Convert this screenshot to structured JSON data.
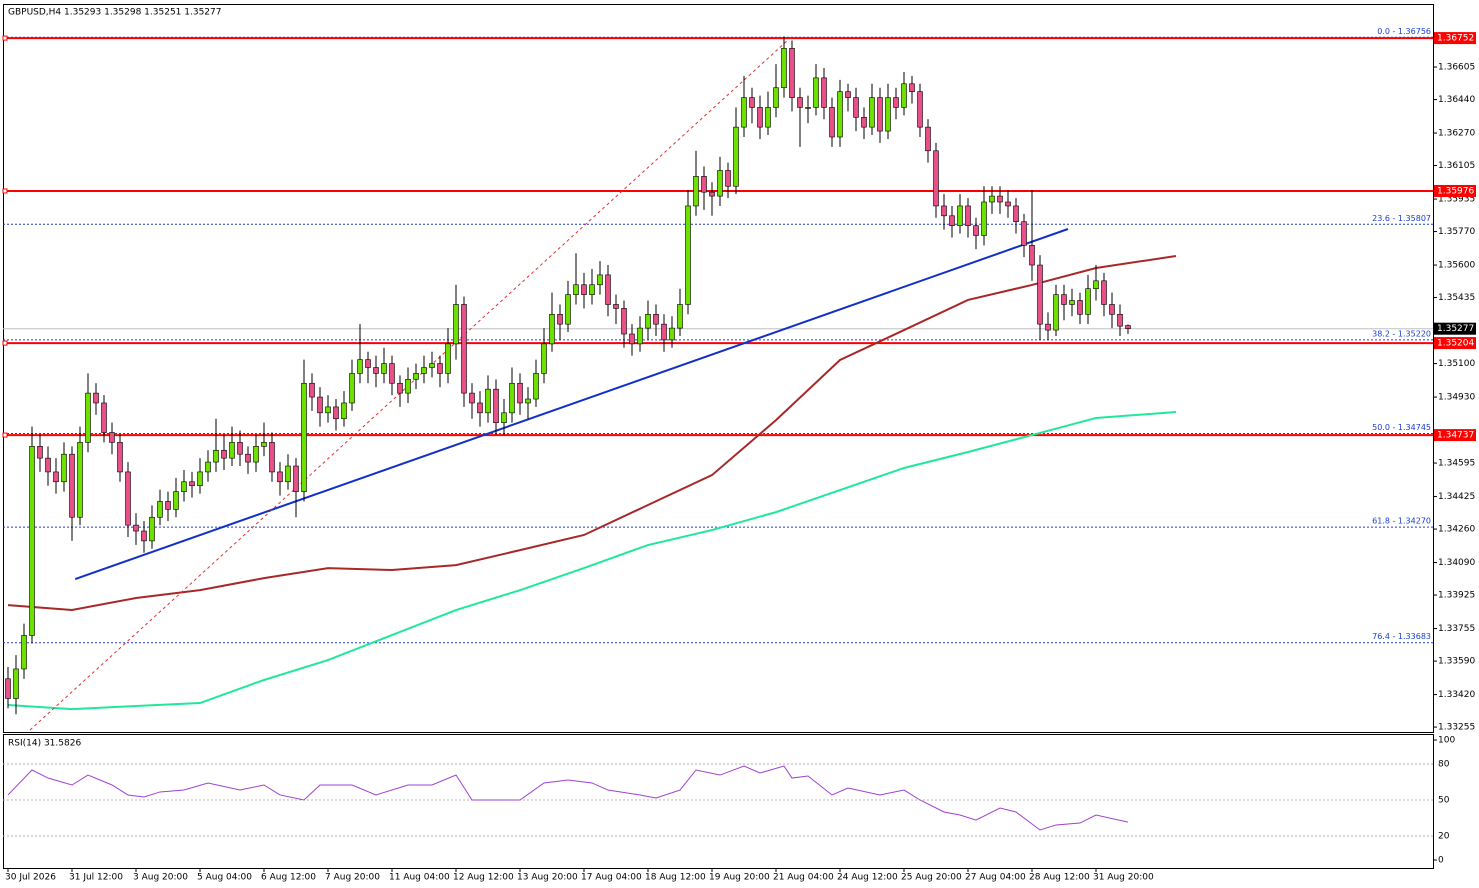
{
  "header": "GBPUSD,H4  1.35293 1.35298 1.35251 1.35277",
  "chart_data": {
    "type": "candlestick",
    "up_color": "#6ee000",
    "down_color": "#e8508a",
    "ylim": [
      1.3323,
      1.36925
    ],
    "yticks": [
      1.36605,
      {
        "value": 1.3644,
        "label": "1.36440"
      },
      {
        "value": 1.3627,
        "label": "1.36270"
      },
      1.36105,
      1.35935,
      {
        "value": 1.3577,
        "label": "1.35770"
      },
      {
        "value": 1.356,
        "label": "1.35600"
      },
      1.35435,
      {
        "value": 1.351,
        "label": "1.35100"
      },
      {
        "value": 1.3493,
        "label": "1.34930"
      },
      1.34595,
      1.34425,
      {
        "value": 1.3426,
        "label": "1.34260"
      },
      {
        "value": 1.3409,
        "label": "1.34090"
      },
      1.33925,
      1.33755,
      {
        "value": 1.3359,
        "label": "1.33590"
      },
      {
        "value": 1.3342,
        "label": "1.33420"
      },
      1.33255
    ],
    "xticks": [
      {
        "value": 0,
        "label": "30 Jul 2026"
      },
      {
        "value": 8,
        "label": "31 Jul 12:00"
      },
      {
        "value": 16,
        "label": "3 Aug 20:00"
      },
      {
        "value": 24,
        "label": "5 Aug 04:00"
      },
      {
        "value": 32,
        "label": "6 Aug 12:00"
      },
      {
        "value": 40,
        "label": "7 Aug 20:00"
      },
      {
        "value": 48,
        "label": "11 Aug 04:00"
      },
      {
        "value": 56,
        "label": "12 Aug 12:00"
      },
      {
        "value": 64,
        "label": "13 Aug 20:00"
      },
      {
        "value": 72,
        "label": "17 Aug 04:00"
      },
      {
        "value": 80,
        "label": "18 Aug 12:00"
      },
      {
        "value": 88,
        "label": "19 Aug 20:00"
      },
      {
        "value": 96,
        "label": "21 Aug 04:00"
      },
      {
        "value": 104,
        "label": "24 Aug 12:00"
      },
      {
        "value": 112,
        "label": "25 Aug 20:00"
      },
      {
        "value": 120,
        "label": "27 Aug 04:00"
      },
      {
        "value": 128,
        "label": "28 Aug 12:00"
      },
      {
        "value": 136,
        "label": "31 Aug 20:00"
      }
    ],
    "ohlc": [
      [
        1.335,
        1.3356,
        1.3335,
        1.334
      ],
      [
        1.334,
        1.3362,
        1.3332,
        1.3355
      ],
      [
        1.3355,
        1.3378,
        1.335,
        1.3372
      ],
      [
        1.3372,
        1.3478,
        1.3368,
        1.3468
      ],
      [
        1.3468,
        1.3474,
        1.3455,
        1.3462
      ],
      [
        1.3462,
        1.3468,
        1.3448,
        1.3455
      ],
      [
        1.3455,
        1.3462,
        1.3444,
        1.345
      ],
      [
        1.345,
        1.347,
        1.3445,
        1.3464
      ],
      [
        1.3464,
        1.3468,
        1.342,
        1.3432
      ],
      [
        1.3432,
        1.3478,
        1.3428,
        1.347
      ],
      [
        1.347,
        1.3505,
        1.3465,
        1.3495
      ],
      [
        1.3495,
        1.35,
        1.3484,
        1.349
      ],
      [
        1.349,
        1.3494,
        1.347,
        1.3475
      ],
      [
        1.3475,
        1.348,
        1.3464,
        1.347
      ],
      [
        1.347,
        1.3474,
        1.345,
        1.3455
      ],
      [
        1.3455,
        1.346,
        1.3422,
        1.3428
      ],
      [
        1.3428,
        1.3434,
        1.3418,
        1.3425
      ],
      [
        1.3425,
        1.343,
        1.3414,
        1.342
      ],
      [
        1.342,
        1.3438,
        1.3416,
        1.3432
      ],
      [
        1.3432,
        1.3446,
        1.3428,
        1.344
      ],
      [
        1.344,
        1.3445,
        1.343,
        1.3436
      ],
      [
        1.3436,
        1.3452,
        1.3432,
        1.3445
      ],
      [
        1.3445,
        1.3456,
        1.344,
        1.345
      ],
      [
        1.345,
        1.3455,
        1.3442,
        1.3448
      ],
      [
        1.3448,
        1.3462,
        1.3444,
        1.3455
      ],
      [
        1.3455,
        1.3466,
        1.345,
        1.346
      ],
      [
        1.346,
        1.3482,
        1.3455,
        1.3466
      ],
      [
        1.3466,
        1.3474,
        1.3456,
        1.3462
      ],
      [
        1.3462,
        1.3478,
        1.3458,
        1.347
      ],
      [
        1.347,
        1.3476,
        1.3458,
        1.3464
      ],
      [
        1.3464,
        1.3468,
        1.3454,
        1.346
      ],
      [
        1.346,
        1.3474,
        1.3455,
        1.3468
      ],
      [
        1.3468,
        1.348,
        1.3463,
        1.347
      ],
      [
        1.347,
        1.3475,
        1.345,
        1.3455
      ],
      [
        1.3455,
        1.346,
        1.3443,
        1.345
      ],
      [
        1.345,
        1.3464,
        1.3446,
        1.3458
      ],
      [
        1.3458,
        1.3462,
        1.3432,
        1.3445
      ],
      [
        1.3445,
        1.3512,
        1.344,
        1.35
      ],
      [
        1.35,
        1.3505,
        1.3486,
        1.3493
      ],
      [
        1.3493,
        1.3498,
        1.3478,
        1.3485
      ],
      [
        1.3485,
        1.3494,
        1.348,
        1.3488
      ],
      [
        1.3488,
        1.3492,
        1.3476,
        1.3482
      ],
      [
        1.3482,
        1.3496,
        1.3478,
        1.349
      ],
      [
        1.349,
        1.3512,
        1.3486,
        1.3505
      ],
      [
        1.3505,
        1.353,
        1.35,
        1.3512
      ],
      [
        1.3512,
        1.3516,
        1.35,
        1.3508
      ],
      [
        1.3508,
        1.3514,
        1.3498,
        1.3505
      ],
      [
        1.3505,
        1.3518,
        1.35,
        1.351
      ],
      [
        1.351,
        1.3514,
        1.3494,
        1.35
      ],
      [
        1.35,
        1.3504,
        1.3488,
        1.3495
      ],
      [
        1.3495,
        1.3508,
        1.349,
        1.3502
      ],
      [
        1.3502,
        1.351,
        1.3497,
        1.3505
      ],
      [
        1.3505,
        1.3514,
        1.35,
        1.3508
      ],
      [
        1.3508,
        1.3516,
        1.3503,
        1.351
      ],
      [
        1.351,
        1.3514,
        1.3498,
        1.3505
      ],
      [
        1.3505,
        1.3528,
        1.35,
        1.352
      ],
      [
        1.352,
        1.355,
        1.3512,
        1.354
      ],
      [
        1.354,
        1.3544,
        1.3488,
        1.3495
      ],
      [
        1.3495,
        1.35,
        1.3482,
        1.349
      ],
      [
        1.349,
        1.3496,
        1.3478,
        1.3485
      ],
      [
        1.3485,
        1.3504,
        1.348,
        1.3497
      ],
      [
        1.3497,
        1.3502,
        1.3474,
        1.348
      ],
      [
        1.348,
        1.3492,
        1.3474,
        1.3485
      ],
      [
        1.3485,
        1.3508,
        1.348,
        1.35
      ],
      [
        1.35,
        1.3505,
        1.3484,
        1.349
      ],
      [
        1.349,
        1.3498,
        1.3482,
        1.3492
      ],
      [
        1.3492,
        1.3512,
        1.3488,
        1.3505
      ],
      [
        1.3505,
        1.3528,
        1.35,
        1.352
      ],
      [
        1.352,
        1.3546,
        1.3516,
        1.3535
      ],
      [
        1.3535,
        1.354,
        1.3522,
        1.353
      ],
      [
        1.353,
        1.3552,
        1.3526,
        1.3545
      ],
      [
        1.3545,
        1.3566,
        1.354,
        1.355
      ],
      [
        1.355,
        1.3556,
        1.3538,
        1.3545
      ],
      [
        1.3545,
        1.3558,
        1.354,
        1.355
      ],
      [
        1.355,
        1.3562,
        1.3545,
        1.3555
      ],
      [
        1.3555,
        1.356,
        1.3534,
        1.354
      ],
      [
        1.354,
        1.3545,
        1.353,
        1.3538
      ],
      [
        1.3538,
        1.3542,
        1.3518,
        1.3525
      ],
      [
        1.3525,
        1.353,
        1.3514,
        1.352
      ],
      [
        1.352,
        1.3534,
        1.3516,
        1.3528
      ],
      [
        1.3528,
        1.3542,
        1.3522,
        1.3535
      ],
      [
        1.3535,
        1.354,
        1.3524,
        1.353
      ],
      [
        1.353,
        1.3535,
        1.3516,
        1.3522
      ],
      [
        1.3522,
        1.3534,
        1.3518,
        1.3528
      ],
      [
        1.3528,
        1.3548,
        1.3524,
        1.354
      ],
      [
        1.354,
        1.3598,
        1.3535,
        1.359
      ],
      [
        1.359,
        1.3618,
        1.3585,
        1.3605
      ],
      [
        1.3605,
        1.361,
        1.3588,
        1.3597
      ],
      [
        1.3597,
        1.3602,
        1.3585,
        1.3595
      ],
      [
        1.3595,
        1.3615,
        1.359,
        1.3608
      ],
      [
        1.3608,
        1.3612,
        1.3594,
        1.36
      ],
      [
        1.36,
        1.364,
        1.3596,
        1.363
      ],
      [
        1.363,
        1.3656,
        1.3625,
        1.3645
      ],
      [
        1.3645,
        1.365,
        1.3632,
        1.364
      ],
      [
        1.364,
        1.3646,
        1.3624,
        1.363
      ],
      [
        1.363,
        1.3648,
        1.3626,
        1.364
      ],
      [
        1.364,
        1.3662,
        1.3635,
        1.365
      ],
      [
        1.365,
        1.3676,
        1.3645,
        1.367
      ],
      [
        1.367,
        1.3674,
        1.3638,
        1.3645
      ],
      [
        1.3645,
        1.365,
        1.362,
        1.364
      ],
      [
        1.364,
        1.3646,
        1.3632,
        1.364
      ],
      [
        1.364,
        1.3662,
        1.3636,
        1.3655
      ],
      [
        1.3655,
        1.366,
        1.3634,
        1.364
      ],
      [
        1.364,
        1.3645,
        1.362,
        1.3625
      ],
      [
        1.3625,
        1.3654,
        1.362,
        1.3648
      ],
      [
        1.3648,
        1.3652,
        1.3638,
        1.3645
      ],
      [
        1.3645,
        1.365,
        1.3628,
        1.3635
      ],
      [
        1.3635,
        1.364,
        1.3624,
        1.363
      ],
      [
        1.363,
        1.3652,
        1.3626,
        1.3645
      ],
      [
        1.3645,
        1.365,
        1.3622,
        1.3628
      ],
      [
        1.3628,
        1.3652,
        1.3624,
        1.3645
      ],
      [
        1.3645,
        1.365,
        1.3634,
        1.364
      ],
      [
        1.364,
        1.3658,
        1.3636,
        1.3652
      ],
      [
        1.3652,
        1.3656,
        1.3642,
        1.3648
      ],
      [
        1.3648,
        1.3652,
        1.3625,
        1.363
      ],
      [
        1.363,
        1.3634,
        1.3612,
        1.3618
      ],
      [
        1.3618,
        1.3622,
        1.3584,
        1.359
      ],
      [
        1.359,
        1.3596,
        1.3578,
        1.3585
      ],
      [
        1.3585,
        1.359,
        1.3574,
        1.358
      ],
      [
        1.358,
        1.3596,
        1.3576,
        1.359
      ],
      [
        1.359,
        1.3594,
        1.3574,
        1.358
      ],
      [
        1.358,
        1.3584,
        1.3568,
        1.3575
      ],
      [
        1.3575,
        1.36,
        1.357,
        1.3592
      ],
      [
        1.3592,
        1.36,
        1.3586,
        1.3595
      ],
      [
        1.3595,
        1.36,
        1.3586,
        1.3592
      ],
      [
        1.3592,
        1.3598,
        1.3584,
        1.359
      ],
      [
        1.359,
        1.3594,
        1.3576,
        1.3582
      ],
      [
        1.3582,
        1.3586,
        1.3564,
        1.357
      ],
      [
        1.357,
        1.3598,
        1.3552,
        1.356
      ],
      [
        1.356,
        1.3565,
        1.3522,
        1.353
      ],
      [
        1.353,
        1.3536,
        1.3522,
        1.3527
      ],
      [
        1.3527,
        1.355,
        1.3524,
        1.3545
      ],
      [
        1.3545,
        1.355,
        1.3532,
        1.354
      ],
      [
        1.354,
        1.3548,
        1.3534,
        1.3542
      ],
      [
        1.3542,
        1.3546,
        1.353,
        1.3535
      ],
      [
        1.3535,
        1.3555,
        1.353,
        1.3548
      ],
      [
        1.3548,
        1.356,
        1.3542,
        1.3552
      ],
      [
        1.3552,
        1.3556,
        1.3534,
        1.354
      ],
      [
        1.354,
        1.3546,
        1.3528,
        1.3535
      ],
      [
        1.3535,
        1.354,
        1.3524,
        1.3529
      ],
      [
        1.35293,
        1.35298,
        1.35251,
        1.35277
      ]
    ],
    "levels": [
      {
        "value": 1.36752,
        "color": "#ff0000"
      },
      {
        "value": 1.35976,
        "color": "#ff0000"
      },
      {
        "value": 1.35204,
        "color": "#ff0000"
      },
      {
        "value": 1.34737,
        "color": "#ff0000"
      }
    ],
    "current": {
      "value": 1.35277,
      "color": "#000000"
    },
    "fib": [
      {
        "value": 1.36756,
        "label": "0.0 - 1.36756"
      },
      {
        "value": 1.35807,
        "label": "23.6 - 1.35807"
      },
      {
        "value": 1.3522,
        "label": "38.2 - 1.35220"
      },
      {
        "value": 1.34745,
        "label": "50.0 - 1.34745"
      },
      {
        "value": 1.3427,
        "label": "61.8 - 1.34270"
      },
      {
        "value": 1.33683,
        "label": "76.4 - 1.33683"
      }
    ],
    "fib_color": "#1a3fcf",
    "lines": [
      {
        "color": "#1030c8",
        "dashed": false,
        "x": [
          8.4,
          132.5
        ],
        "values": [
          1.34006,
          1.35783
        ]
      },
      {
        "color": "#e03030",
        "dashed": true,
        "x": [
          2.75,
          97.5
        ],
        "values": [
          1.3324,
          1.36742
        ]
      }
    ],
    "ma": [
      {
        "color": "#a82828",
        "x": [
          0,
          8,
          16,
          24,
          32,
          40,
          48,
          56,
          64,
          72,
          80,
          88,
          96,
          104,
          112,
          120,
          128,
          136,
          146
        ],
        "values": [
          1.33874,
          1.33849,
          1.3391,
          1.3395,
          1.34011,
          1.34062,
          1.34052,
          1.34077,
          1.34153,
          1.3423,
          1.34382,
          1.34534,
          1.34813,
          1.35118,
          1.3527,
          1.35423,
          1.35499,
          1.35585,
          1.35646
        ]
      },
      {
        "color": "#20e89a",
        "x": [
          0,
          8,
          16,
          24,
          32,
          40,
          48,
          56,
          64,
          72,
          80,
          88,
          96,
          104,
          112,
          120,
          128,
          136,
          146
        ],
        "values": [
          1.33367,
          1.33346,
          1.33362,
          1.33377,
          1.33494,
          1.33595,
          1.33722,
          1.33849,
          1.3395,
          1.34062,
          1.34179,
          1.34255,
          1.34346,
          1.34458,
          1.3457,
          1.34651,
          1.34737,
          1.34824,
          1.34854
        ]
      }
    ],
    "rsi": {
      "title": "RSI(14) 31.5826",
      "color": "#a040d0",
      "ylim": [
        0,
        100
      ],
      "yticks": [
        100,
        80,
        50,
        20,
        0
      ],
      "x": [
        0,
        3,
        5,
        8,
        10,
        13,
        15,
        17,
        19,
        22,
        25,
        29,
        32,
        34,
        37,
        39,
        43,
        46,
        50,
        53,
        56,
        58,
        62,
        64,
        67,
        70,
        73,
        75,
        79,
        81,
        84,
        86,
        89,
        92,
        94,
        97,
        98,
        100,
        103,
        105,
        109,
        112,
        114,
        117,
        119,
        121,
        124,
        126,
        129,
        131,
        134,
        136,
        140
      ],
      "values": [
        54.2,
        75,
        68.3,
        62.5,
        70.8,
        62.5,
        54.2,
        52.5,
        56.7,
        58.3,
        64.2,
        58.3,
        62.5,
        54.2,
        50,
        62.5,
        62.5,
        54.2,
        62.5,
        62.5,
        70.8,
        50,
        50,
        50,
        64.2,
        66.7,
        64.2,
        58.3,
        54.2,
        51.7,
        58.3,
        75,
        70.8,
        78.3,
        72.5,
        78.3,
        68.3,
        70,
        54.2,
        60,
        54.2,
        58.3,
        50,
        40,
        37.5,
        33.3,
        43.3,
        40,
        25,
        29.2,
        30.8,
        37.5,
        31.6
      ]
    }
  }
}
